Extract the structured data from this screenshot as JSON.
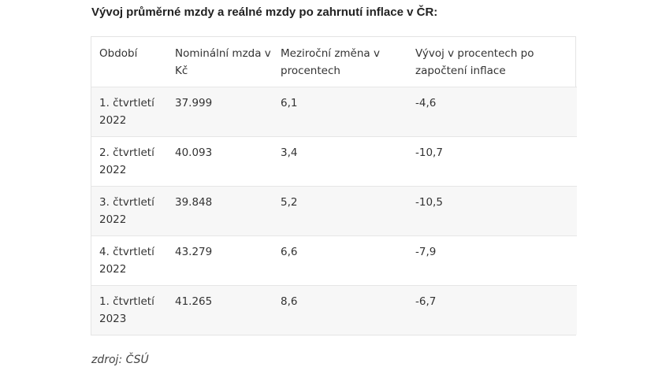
{
  "title": "Vývoj průměrné mzdy a reálné mzdy po zahrnutí inflace v ČR:",
  "table": {
    "headers": [
      "Období",
      "Nominální mzda v Kč",
      "Meziroční změna v procentech",
      "Vývoj v procentech po započtení inflace"
    ],
    "rows": [
      [
        "1. čtvrtletí 2022",
        "37.999",
        "6,1",
        "-4,6"
      ],
      [
        "2. čtvrtletí 2022",
        "40.093",
        "3,4",
        "-10,7"
      ],
      [
        "3. čtvrtletí 2022",
        "39.848",
        "5,2",
        "-10,5"
      ],
      [
        "4. čtvrtletí 2022",
        "43.279",
        "6,6",
        "-7,9"
      ],
      [
        "1. čtvrtletí 2023",
        "41.265",
        "8,6",
        "-6,7"
      ]
    ]
  },
  "source": "zdroj: ČSÚ"
}
